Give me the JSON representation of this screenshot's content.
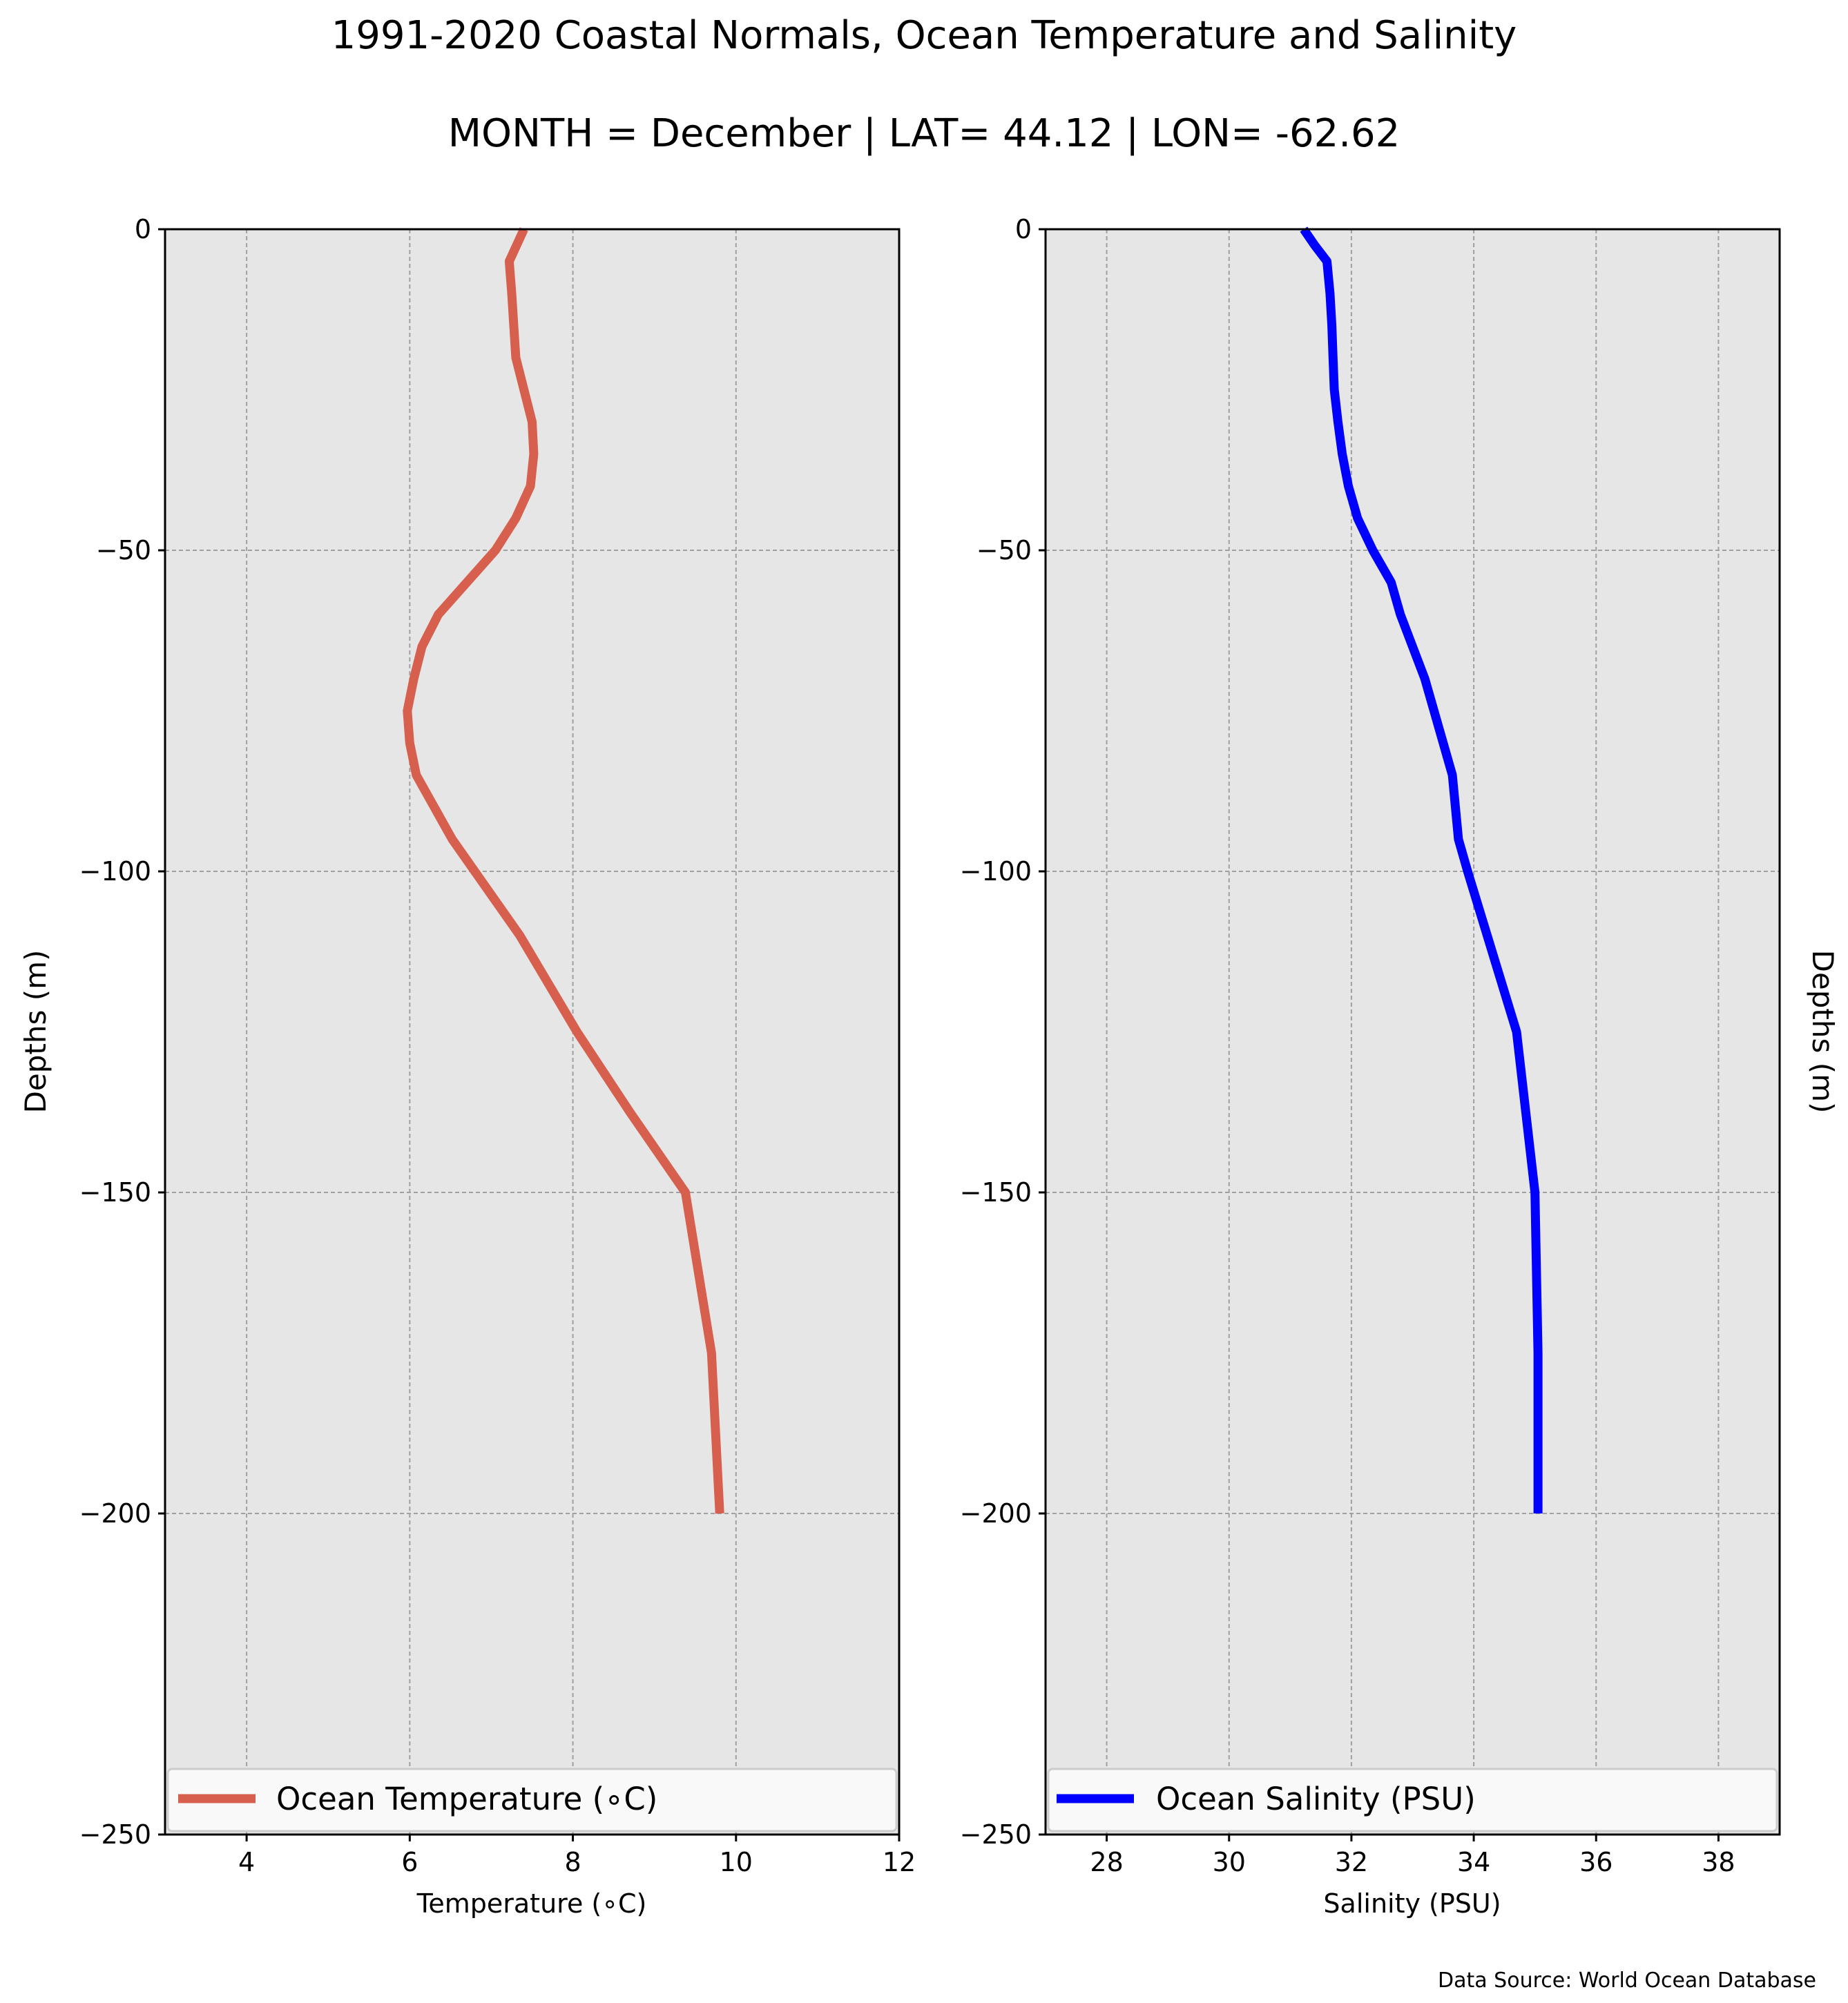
{
  "title": "1991-2020 Coastal Normals, Ocean Temperature and Salinity",
  "subtitle": "MONTH = December | LAT= 44.12 | LON= -62.62",
  "source": "Data Source: World Ocean Database",
  "colors": {
    "background": "#ffffff",
    "plot_bg": "#e7e6e6",
    "grid": "#a0a0a0",
    "temperature": "#d65f4e",
    "salinity": "#0000ff",
    "legend_bg": "#f9f9f9"
  },
  "chart_data": [
    {
      "type": "line",
      "xlabel": "Temperature ($^\\circ$C)",
      "xlabel_display": "Temperature (∘C)",
      "ylabel": "Depths (m)",
      "xlim": [
        3,
        12
      ],
      "ylim": [
        -250,
        0
      ],
      "xticks": [
        4,
        6,
        8,
        10,
        12
      ],
      "xtick_labels": [
        "4",
        "6",
        "8",
        "10",
        "12"
      ],
      "yticks": [
        0,
        -50,
        -100,
        -150,
        -200,
        -250
      ],
      "ytick_labels": [
        "0",
        "−50",
        "−100",
        "−150",
        "−200",
        "−250"
      ],
      "grid": true,
      "legend_position": "lower center",
      "series": [
        {
          "name": "Ocean Temperature (∘C)",
          "color": "#d65f4e",
          "x": [
            7.4,
            7.22,
            7.25,
            7.3,
            7.4,
            7.5,
            7.52,
            7.48,
            7.3,
            7.05,
            6.7,
            6.35,
            6.15,
            6.05,
            5.97,
            6.0,
            6.08,
            6.3,
            6.52,
            7.35,
            8.05,
            8.7,
            9.38,
            9.7,
            9.8
          ],
          "y": [
            0,
            -5,
            -10,
            -20,
            -25,
            -30,
            -35,
            -40,
            -45,
            -50,
            -55,
            -60,
            -65,
            -70,
            -75,
            -80,
            -85,
            -90,
            -95,
            -110,
            -125,
            -137.5,
            -150,
            -175,
            -200
          ]
        }
      ]
    },
    {
      "type": "line",
      "xlabel": "Salinity (PSU)",
      "ylabel": "Depths (m)",
      "xlim": [
        27,
        39
      ],
      "ylim": [
        -250,
        0
      ],
      "xticks": [
        28,
        30,
        32,
        34,
        36,
        38
      ],
      "xtick_labels": [
        "28",
        "30",
        "32",
        "34",
        "36",
        "38"
      ],
      "yticks": [
        0,
        -50,
        -100,
        -150,
        -200,
        -250
      ],
      "ytick_labels": [
        "0",
        "−50",
        "−100",
        "−150",
        "−200",
        "−250"
      ],
      "grid": true,
      "legend_position": "lower center",
      "series": [
        {
          "name": "Ocean Salinity (PSU)",
          "color": "#0000ff",
          "x": [
            31.22,
            31.4,
            31.6,
            31.65,
            31.68,
            31.7,
            31.72,
            31.78,
            31.85,
            31.95,
            32.1,
            32.35,
            32.65,
            32.8,
            33.0,
            33.2,
            33.35,
            33.5,
            33.65,
            33.7,
            33.75,
            33.9,
            34.7,
            35.0,
            35.05,
            35.05
          ],
          "y": [
            0,
            -2.5,
            -5,
            -10,
            -15,
            -20,
            -25,
            -30,
            -35,
            -40,
            -45,
            -50,
            -55,
            -60,
            -65,
            -70,
            -75,
            -80,
            -85,
            -90,
            -95,
            -100,
            -125,
            -150,
            -175,
            -200
          ]
        }
      ]
    }
  ]
}
